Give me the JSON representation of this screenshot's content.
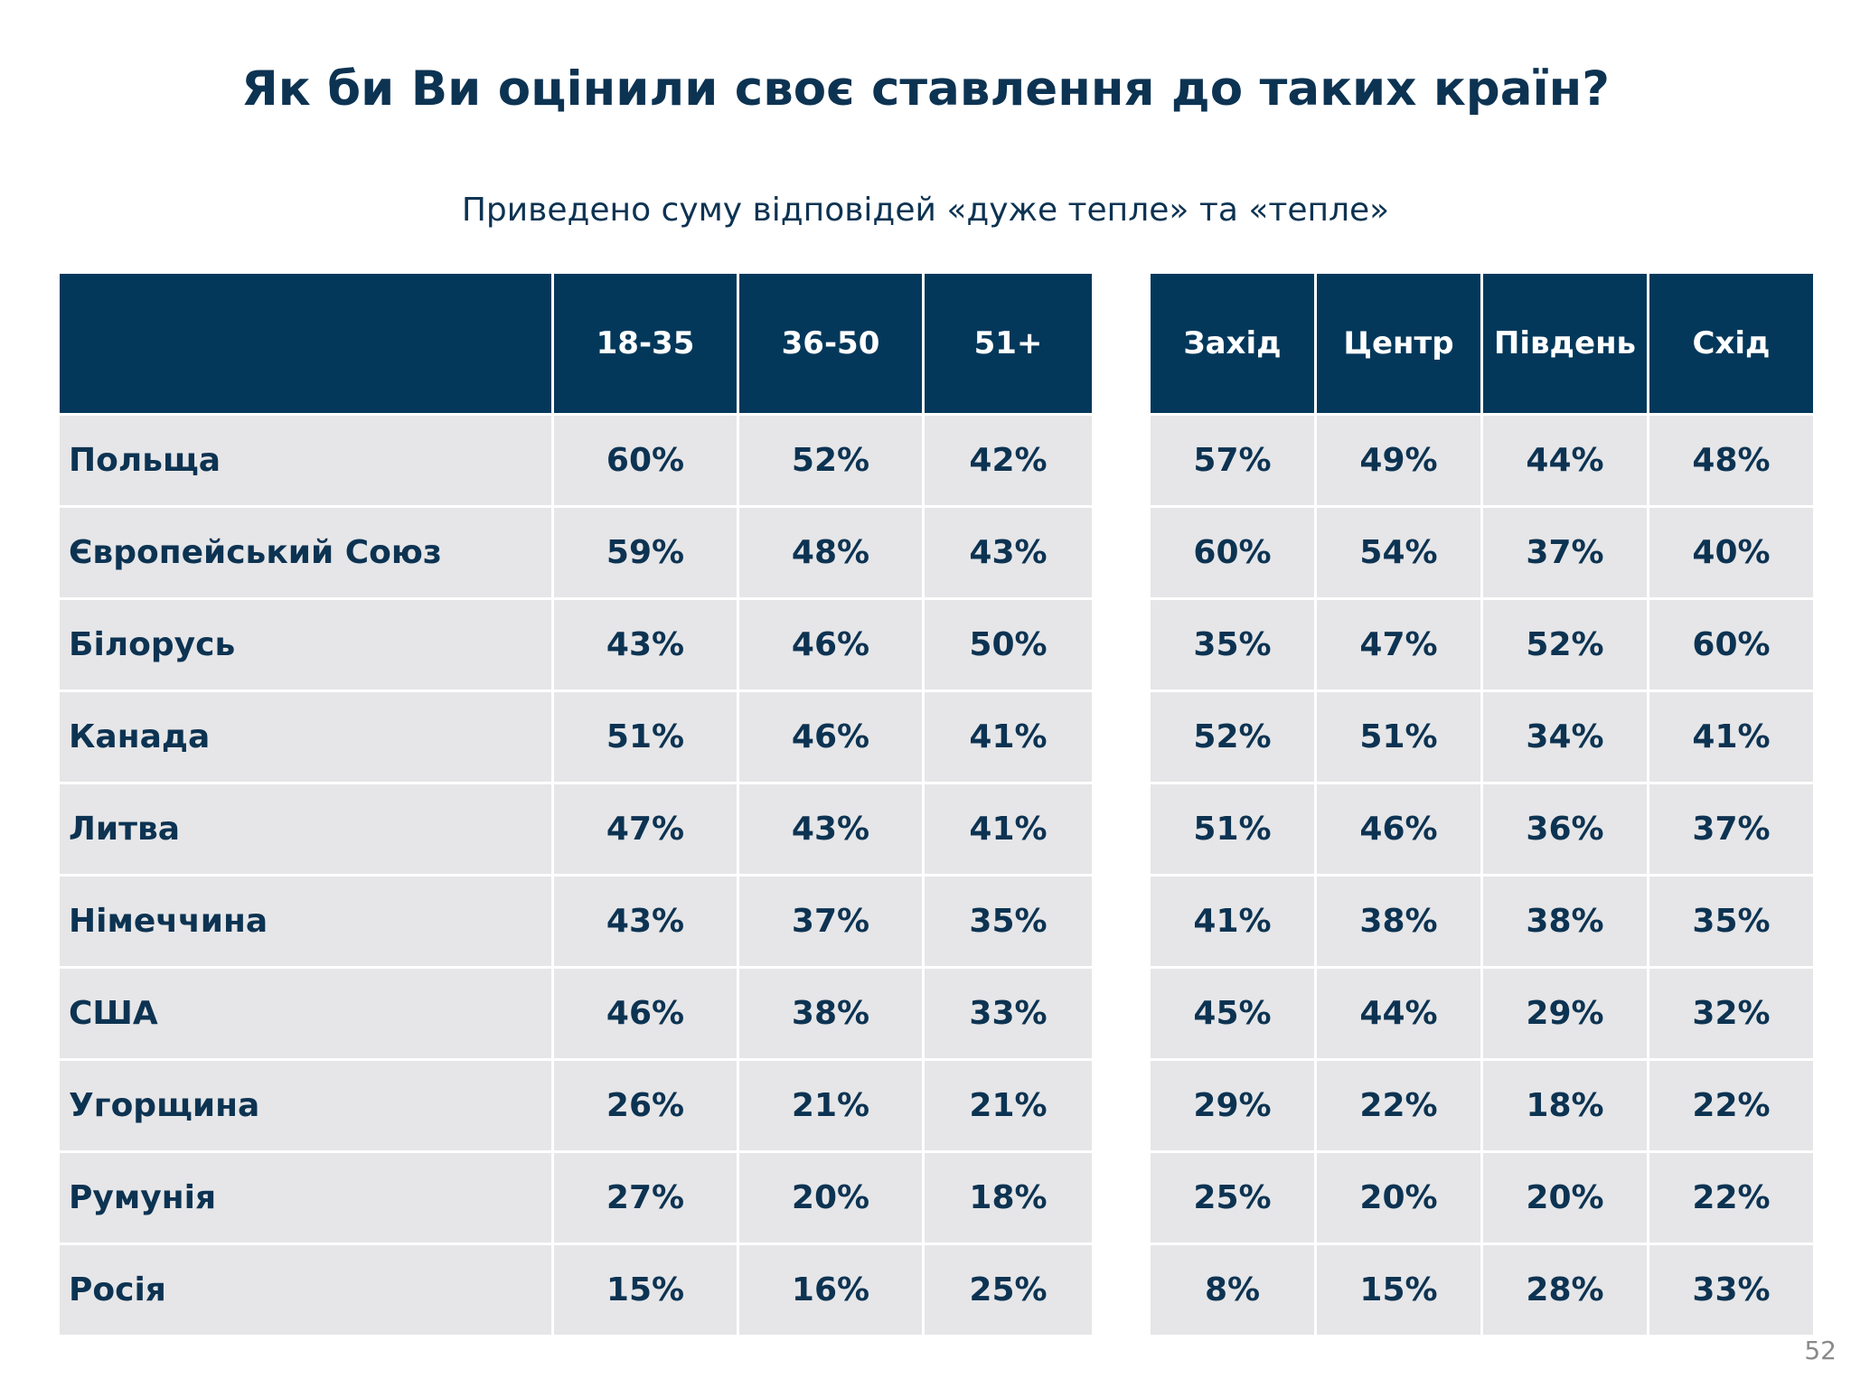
{
  "title": "Як би Ви оцінили своє ставлення до таких країн?",
  "subtitle": "Приведено суму відповідей «дуже тепле» та «тепле»",
  "age_table": {
    "corner": "",
    "headers": [
      "18-35",
      "36-50",
      "51+"
    ],
    "rows": [
      {
        "name": "Польща",
        "values": [
          "60%",
          "52%",
          "42%"
        ]
      },
      {
        "name": "Європейський Союз",
        "values": [
          "59%",
          "48%",
          "43%"
        ]
      },
      {
        "name": "Білорусь",
        "values": [
          "43%",
          "46%",
          "50%"
        ]
      },
      {
        "name": "Канада",
        "values": [
          "51%",
          "46%",
          "41%"
        ]
      },
      {
        "name": "Литва",
        "values": [
          "47%",
          "43%",
          "41%"
        ]
      },
      {
        "name": "Німеччина",
        "values": [
          "43%",
          "37%",
          "35%"
        ]
      },
      {
        "name": "США",
        "values": [
          "46%",
          "38%",
          "33%"
        ]
      },
      {
        "name": "Угорщина",
        "values": [
          "26%",
          "21%",
          "21%"
        ]
      },
      {
        "name": "Румунія",
        "values": [
          "27%",
          "20%",
          "18%"
        ]
      },
      {
        "name": "Росія",
        "values": [
          "15%",
          "16%",
          "25%"
        ]
      }
    ]
  },
  "region_table": {
    "headers": [
      "Захід",
      "Центр",
      "Південь",
      "Схід"
    ],
    "rows": [
      [
        "57%",
        "49%",
        "44%",
        "48%"
      ],
      [
        "60%",
        "54%",
        "37%",
        "40%"
      ],
      [
        "35%",
        "47%",
        "52%",
        "60%"
      ],
      [
        "52%",
        "51%",
        "34%",
        "41%"
      ],
      [
        "51%",
        "46%",
        "36%",
        "37%"
      ],
      [
        "41%",
        "38%",
        "38%",
        "35%"
      ],
      [
        "45%",
        "44%",
        "29%",
        "32%"
      ],
      [
        "29%",
        "22%",
        "18%",
        "22%"
      ],
      [
        "25%",
        "20%",
        "20%",
        "22%"
      ],
      [
        "8%",
        "15%",
        "28%",
        "33%"
      ]
    ]
  },
  "page_number": "52",
  "colors": {
    "header_bg": "#03385b",
    "cell_bg": "#e6e6e8",
    "text": "#0d3352"
  }
}
